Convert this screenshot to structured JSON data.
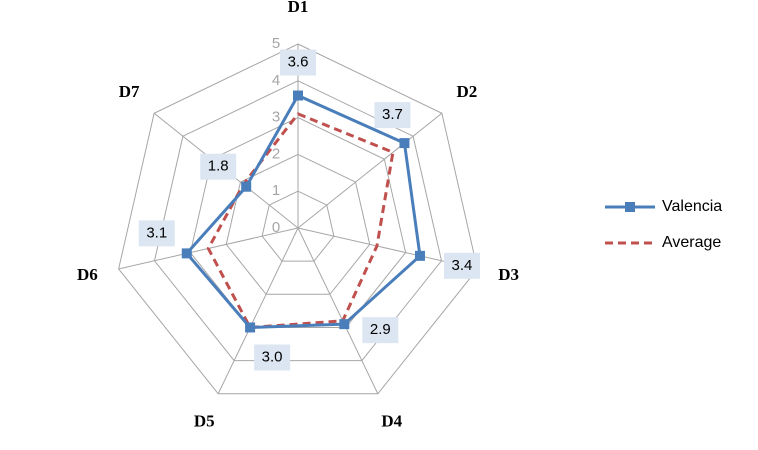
{
  "chart_data": {
    "type": "radar",
    "categories": [
      "D1",
      "D2",
      "D3",
      "D4",
      "D5",
      "D6",
      "D7"
    ],
    "series": [
      {
        "name": "Valencia",
        "color": "#4a7ebb",
        "values": [
          3.6,
          3.7,
          3.4,
          2.9,
          3.0,
          3.1,
          1.8
        ],
        "value_labels": [
          "3.6",
          "3.7",
          "3.4",
          "2.9",
          "3.0",
          "3.1",
          "1.8"
        ]
      },
      {
        "name": "Average",
        "color": "#c0504d",
        "values": [
          3.1,
          3.3,
          2.2,
          2.8,
          3.0,
          2.5,
          1.9
        ]
      }
    ],
    "ylim": [
      0,
      5
    ],
    "yticks": [
      0,
      1,
      2,
      3,
      4,
      5
    ],
    "grid": true,
    "legend": "right"
  }
}
